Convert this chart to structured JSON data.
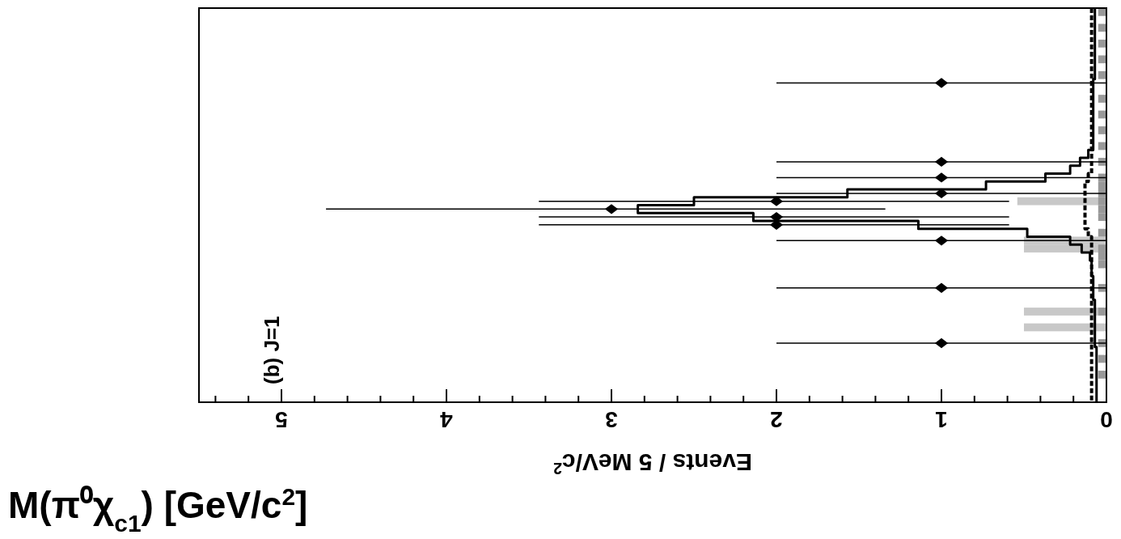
{
  "chart_data": {
    "type": "scatter",
    "orientation": "horizontal",
    "xlabel": "Events / 5 MeV/c$^{2}$",
    "ylabel": "M(π⁰χ$_{c1}$) [GeV/c$^{2}$]",
    "annotations": [
      "(b) J=1"
    ],
    "categories": [
      null,
      null,
      null,
      null,
      null,
      null,
      null,
      null,
      null,
      null,
      null,
      null,
      null,
      null,
      null,
      null,
      null,
      null,
      null,
      null,
      null,
      null,
      null,
      null,
      null,
      null,
      null,
      null,
      null,
      null,
      null,
      null,
      null,
      null,
      null,
      null,
      null,
      null,
      null,
      null,
      null,
      null,
      null,
      null,
      null,
      null,
      null,
      null,
      null,
      null
    ],
    "xlim": [
      5.5,
      0
    ],
    "xticks": [
      0,
      1,
      2,
      3,
      4,
      5
    ],
    "tick_labels": "x",
    "series": [
      {
        "type": "bar",
        "color": "#c8c8c8",
        "values": [
          null,
          null,
          null,
          null,
          null,
          null,
          null,
          null,
          null,
          null,
          null,
          null,
          null,
          null,
          null,
          null,
          null,
          null,
          null,
          null,
          null,
          null,
          null,
          null,
          0.54,
          null,
          null,
          null,
          null,
          0.5,
          0.5,
          null,
          null,
          null,
          null,
          null,
          null,
          null,
          0.5,
          null,
          0.5,
          null,
          null,
          null,
          null,
          null,
          null,
          null,
          null,
          null
        ]
      },
      {
        "type": "bar",
        "color": "#999999",
        "values": [
          0.05,
          null,
          0.05,
          null,
          0.05,
          null,
          0.05,
          null,
          0.05,
          null,
          null,
          0.05,
          null,
          0.05,
          null,
          0.05,
          null,
          0.05,
          null,
          0.05,
          null,
          0.05,
          0.05,
          0.05,
          0.05,
          0.05,
          0.05,
          null,
          0.05,
          null,
          0.05,
          0.05,
          0.05,
          null,
          null,
          0.05,
          null,
          null,
          0.05,
          null,
          null,
          null,
          0.05,
          null,
          0.05,
          null,
          0.05,
          null,
          null,
          null
        ]
      },
      {
        "type": "step",
        "color": "#000000",
        "line_style": "dashed",
        "marker": "none",
        "values": [
          0.09,
          0.09,
          0.09,
          0.09,
          0.09,
          0.09,
          0.09,
          0.09,
          0.09,
          0.09,
          0.09,
          0.09,
          0.09,
          0.09,
          0.09,
          0.09,
          0.09,
          0.09,
          0.09,
          0.09,
          0.09,
          0.11,
          0.13,
          0.13,
          0.13,
          0.13,
          0.13,
          0.13,
          0.11,
          0.09,
          0.09,
          0.09,
          0.09,
          0.09,
          0.09,
          0.09,
          0.09,
          0.09,
          0.09,
          0.09,
          0.09,
          0.09,
          0.09,
          0.09,
          0.09,
          0.09,
          0.09,
          0.09,
          0.09,
          0.09
        ]
      },
      {
        "type": "step",
        "color": "#000000",
        "line_style": "solid",
        "marker": "none",
        "values": [
          0.07,
          0.07,
          0.07,
          0.07,
          0.07,
          0.07,
          0.07,
          0.07,
          0.07,
          0.08,
          0.08,
          0.08,
          0.08,
          0.08,
          0.08,
          0.08,
          0.08,
          0.08,
          0.11,
          0.16,
          0.22,
          0.37,
          0.73,
          1.57,
          2.5,
          2.84,
          2.14,
          1.14,
          0.48,
          0.22,
          0.15,
          0.1,
          0.09,
          0.09,
          0.08,
          0.08,
          0.08,
          0.07,
          0.07,
          0.07,
          0.07,
          0.07,
          0.07,
          0.06,
          0.06,
          0.06,
          0.06,
          0.06,
          0.06,
          0.06
        ]
      },
      {
        "color": "#000000",
        "marker": "diamond",
        "values": [
          null,
          null,
          null,
          null,
          null,
          null,
          null,
          null,
          null,
          1,
          null,
          null,
          null,
          null,
          null,
          null,
          null,
          null,
          null,
          1,
          null,
          1,
          null,
          1,
          2,
          3,
          2,
          2,
          null,
          1,
          null,
          null,
          null,
          null,
          null,
          1,
          null,
          null,
          null,
          null,
          null,
          null,
          1,
          null,
          null,
          null,
          null,
          null,
          null,
          null
        ],
        "errors": [
          null,
          null,
          null,
          null,
          null,
          null,
          null,
          null,
          null,
          [
            0,
            2
          ],
          null,
          null,
          null,
          null,
          null,
          null,
          null,
          null,
          null,
          [
            0,
            2
          ],
          null,
          [
            0,
            2
          ],
          null,
          [
            0,
            2
          ],
          [
            0.59,
            3.44
          ],
          [
            1.34,
            4.73
          ],
          [
            0.59,
            3.44
          ],
          [
            0.59,
            3.44
          ],
          null,
          [
            0,
            2
          ],
          null,
          null,
          null,
          null,
          null,
          [
            0,
            2
          ],
          null,
          null,
          null,
          null,
          null,
          null,
          [
            0,
            2
          ],
          null,
          null,
          null,
          null,
          null,
          null,
          null
        ]
      }
    ]
  }
}
